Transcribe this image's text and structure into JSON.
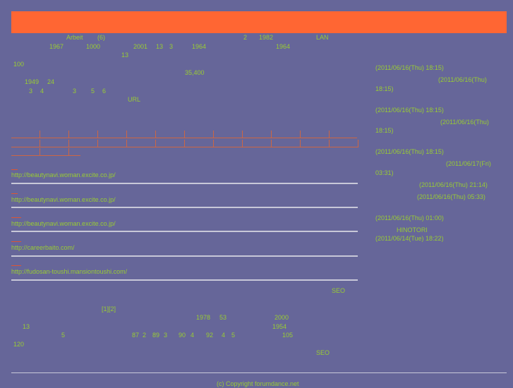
{
  "header": {
    "banner_color": "#ff6633"
  },
  "intro": [
    "Arbeit",
    "(6)",
    "2",
    "1982",
    "LAN",
    "1967",
    "1000",
    "2001",
    "13",
    "3",
    "1964",
    "1964",
    "13",
    "100",
    "35,400",
    "1949",
    "24",
    "3",
    "4",
    "3",
    "5",
    "6",
    "URL"
  ],
  "links": [
    {
      "url": "http://beautynavi.woman.excite.co.jp/"
    },
    {
      "url": "http://beautynavi.woman.excite.co.jp/"
    },
    {
      "url": "http://beautynavi.woman.excite.co.jp/"
    },
    {
      "url": "http://careerbaito.com/"
    },
    {
      "url": "http://fudosan-toushi.mansiontoushi.com/"
    }
  ],
  "sidebar": {
    "dates": [
      "(2011/06/16(Thu) 18:15)",
      "(2011/06/16(Thu)",
      "18:15)",
      "(2011/06/16(Thu) 18:15)",
      "(2011/06/16(Thu)",
      "18:15)",
      "(2011/06/16(Thu) 18:15)",
      "(2011/06/17(Fri)",
      "03:31)",
      "(2011/06/16(Thu) 21:14)",
      "(2011/06/16(Thu) 05:33)",
      "(2011/06/16(Thu) 01:00)",
      "HINOTORI",
      "(2011/06/14(Tue) 18:22)"
    ]
  },
  "lower": [
    "SEO",
    "[1][2]",
    "1978",
    "53",
    "2000",
    "13",
    "1954",
    "5",
    "87",
    "2",
    "89",
    "3",
    "90",
    "4",
    "92",
    "4",
    "5",
    "105",
    "120",
    "SEO"
  ],
  "footer": {
    "copyright": "(c) Copyright forumdance.net"
  }
}
